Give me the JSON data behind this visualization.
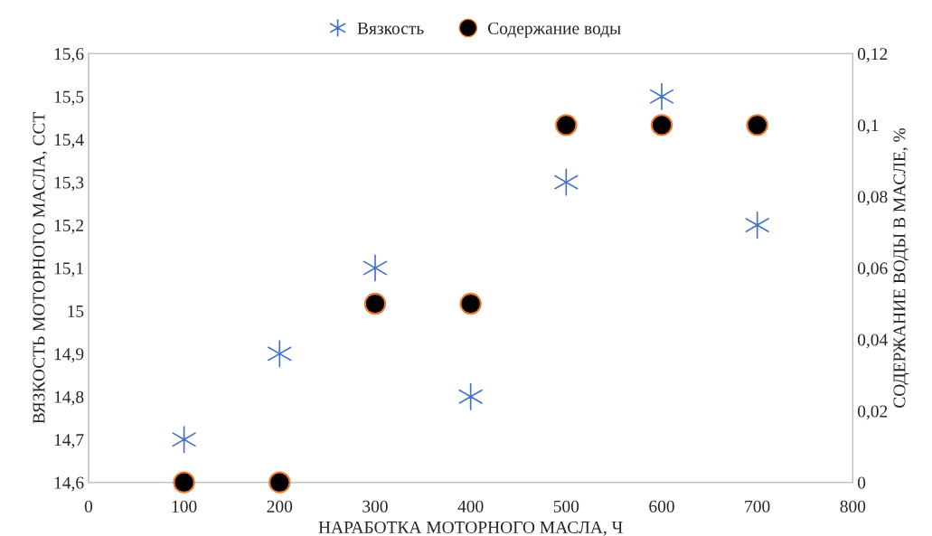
{
  "chart_data": {
    "type": "scatter",
    "xlabel": "НАРАБОТКА МОТОРНОГО МАСЛА, Ч",
    "ylabel": "ВЯЗКОСТЬ МОТОРНОГО МАСЛА, ССТ",
    "y2label": "СОДЕРЖАНИЕ ВОДЫ В МАСЛЕ, %",
    "x": [
      100,
      200,
      300,
      400,
      500,
      600,
      700
    ],
    "series": [
      {
        "name": "Вязкость",
        "color": "#4472c4",
        "marker": "cross",
        "values": [
          14.7,
          14.9,
          15.1,
          14.8,
          15.3,
          15.5,
          15.2
        ]
      },
      {
        "name": "Содержание воды",
        "color": "#000000",
        "marker": "circle",
        "axis": "y2",
        "values": [
          0,
          0,
          0.05,
          0.05,
          0.1,
          0.1,
          0.1
        ]
      }
    ],
    "xlim": [
      0,
      800
    ],
    "xticks": [
      0,
      100,
      200,
      300,
      400,
      500,
      600,
      700,
      800
    ],
    "ylim": [
      14.6,
      15.6
    ],
    "yticks": [
      {
        "value": 14.6,
        "label": "14,6"
      },
      {
        "value": 14.7,
        "label": "14,7"
      },
      {
        "value": 14.8,
        "label": "14,8"
      },
      {
        "value": 14.9,
        "label": "14,9"
      },
      15,
      {
        "value": 15.1,
        "label": "15,1"
      },
      {
        "value": 15.2,
        "label": "15,2"
      },
      {
        "value": 15.3,
        "label": "15,3"
      },
      {
        "value": 15.4,
        "label": "15,4"
      },
      {
        "value": 15.5,
        "label": "15,5"
      },
      {
        "value": 15.6,
        "label": "15,6"
      }
    ],
    "y2lim": [
      0,
      0.12
    ],
    "y2ticks": [
      0,
      {
        "value": 0.02,
        "label": "0,02"
      },
      {
        "value": 0.04,
        "label": "0,04"
      },
      {
        "value": 0.06,
        "label": "0,06"
      },
      {
        "value": 0.08,
        "label": "0,08"
      },
      {
        "value": 0.1,
        "label": "0,1"
      },
      {
        "value": 0.12,
        "label": "0,12"
      }
    ],
    "grid": false,
    "legend": "top"
  }
}
